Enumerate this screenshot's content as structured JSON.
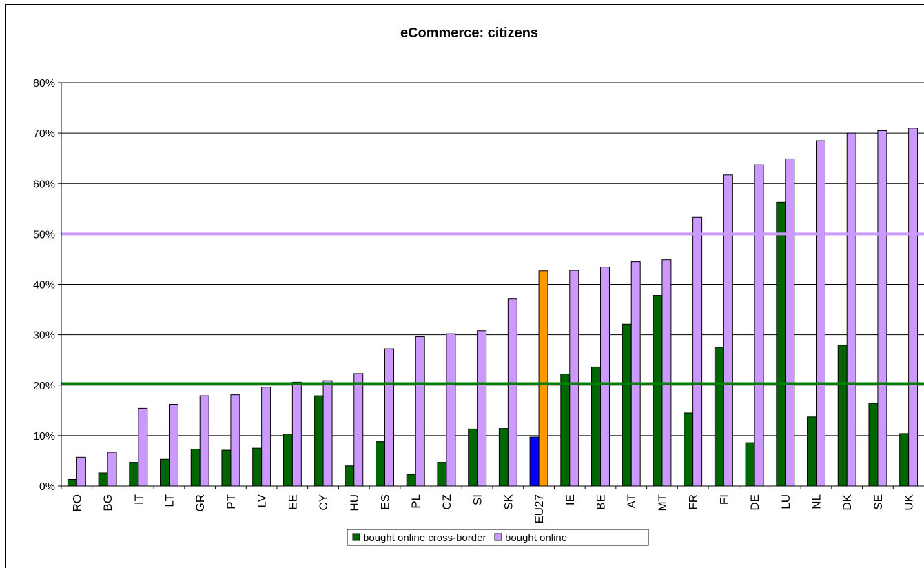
{
  "chart_data": {
    "type": "bar",
    "title": "eCommerce: citizens",
    "categories": [
      "RO",
      "BG",
      "IT",
      "LT",
      "GR",
      "PT",
      "LV",
      "EE",
      "CY",
      "HU",
      "ES",
      "PL",
      "CZ",
      "SI",
      "SK",
      "EU27",
      "IE",
      "BE",
      "AT",
      "MT",
      "FR",
      "FI",
      "DE",
      "LU",
      "NL",
      "DK",
      "SE",
      "UK"
    ],
    "series": [
      {
        "name": "bought online cross-border",
        "color": "#006600",
        "values": [
          1.3,
          2.6,
          4.7,
          5.3,
          7.3,
          7.1,
          7.5,
          10.3,
          17.9,
          4.0,
          8.8,
          2.3,
          4.7,
          11.3,
          11.4,
          9.7,
          22.2,
          23.6,
          32.1,
          37.8,
          14.5,
          27.5,
          8.6,
          56.3,
          13.7,
          27.9,
          16.4,
          10.4
        ]
      },
      {
        "name": "bought online",
        "color": "#cc99ff",
        "values": [
          5.7,
          6.7,
          15.4,
          16.2,
          17.9,
          18.1,
          19.6,
          20.6,
          20.9,
          22.3,
          27.2,
          29.6,
          30.2,
          30.8,
          37.1,
          42.7,
          42.8,
          43.4,
          44.5,
          44.9,
          53.3,
          61.7,
          63.7,
          64.9,
          68.5,
          70.0,
          70.5,
          71.0
        ]
      }
    ],
    "highlight": {
      "category": "EU27",
      "colors": [
        "#0000ff",
        "#ff9900"
      ]
    },
    "reference_lines": [
      {
        "value": 50,
        "color": "#cc99ff"
      },
      {
        "value": 20.3,
        "color": "#008000"
      }
    ],
    "ylim": [
      0,
      80
    ],
    "yticks": [
      "0%",
      "10%",
      "20%",
      "30%",
      "40%",
      "50%",
      "60%",
      "70%",
      "80%"
    ],
    "grid": true,
    "legend_position": "bottom"
  }
}
